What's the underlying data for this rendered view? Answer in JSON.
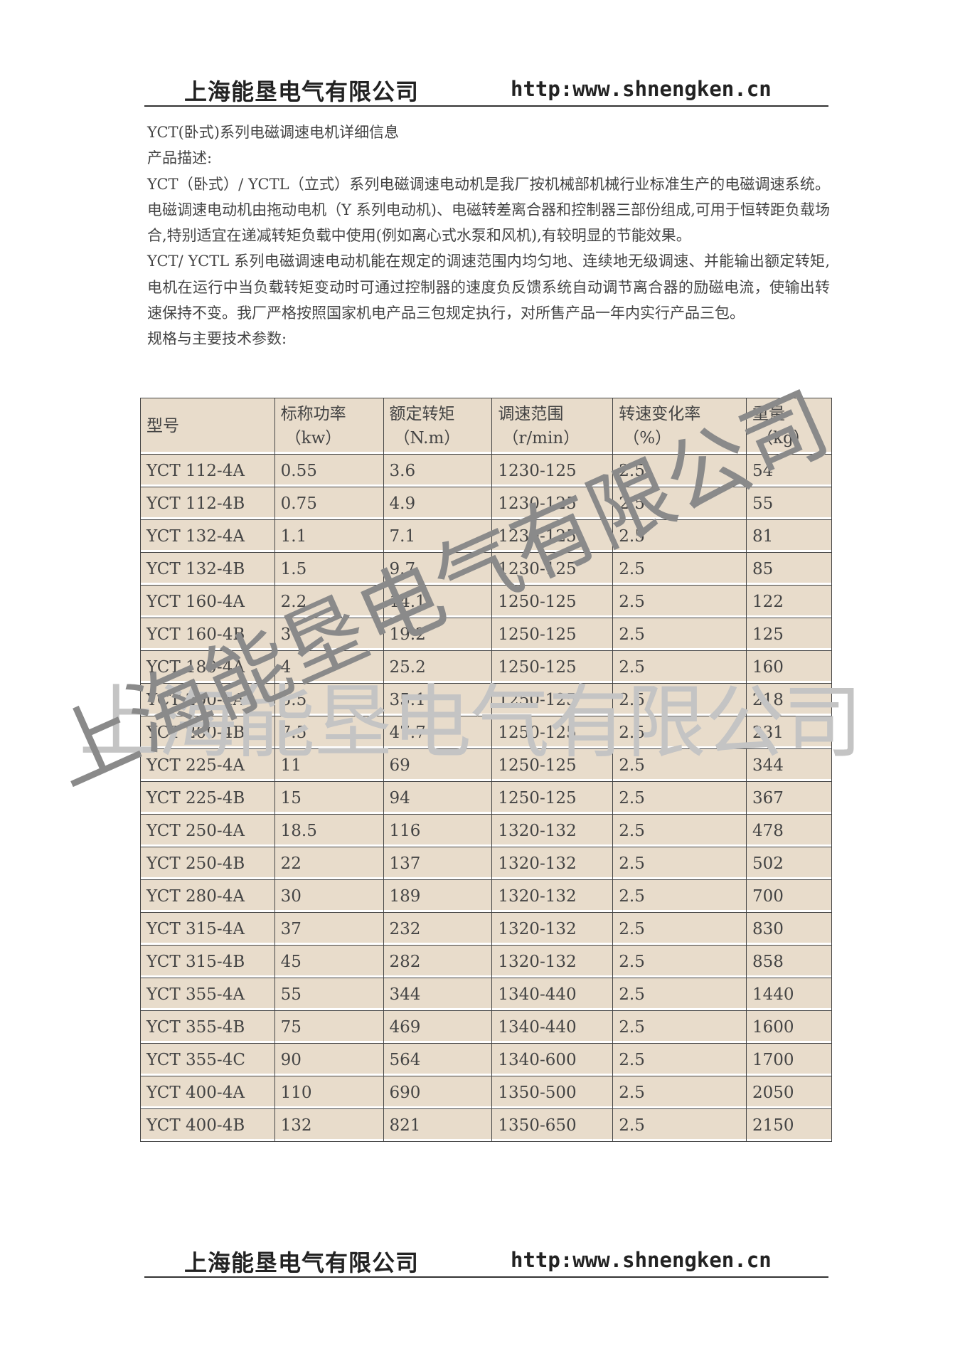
{
  "header": {
    "company": "上海能垦电气有限公司",
    "url": "http:www.shnengken.cn"
  },
  "footer": {
    "company": "上海能垦电气有限公司",
    "url": "http:www.shnengken.cn"
  },
  "content": {
    "title": "YCT(卧式)系列电磁调速电机详细信息",
    "desc_label": "产品描述:",
    "para1": "YCT（卧式）/ YCTL（立式）系列电磁调速电动机是我厂按机械部机械行业标准生产的电磁调速系统。电磁调速电动机由拖动电机（Y 系列电动机)、电磁转差离合器和控制器三部份组成,可用于恒转距负载场合,特别适宜在递减转矩负载中使用(例如离心式水泵和风机),有较明显的节能效果。",
    "para2": "YCT/ YCTL 系列电磁调速电动机能在规定的调速范围内均匀地、连续地无级调速、并能输出额定转矩,电机在运行中当负载转矩变动时可通过控制器的速度负反馈系统自动调节离合器的励磁电流，使输出转速保持不变。我厂严格按照国家机电产品三包规定执行，对所售产品一年内实行产品三包。",
    "spec_label": "规格与主要技术参数:"
  },
  "table": {
    "headers": [
      {
        "name": "型号",
        "unit": ""
      },
      {
        "name": "标称功率",
        "unit": "（kw）"
      },
      {
        "name": "额定转矩",
        "unit": "（N.m）"
      },
      {
        "name": "调速范围",
        "unit": "（r/min）"
      },
      {
        "name": "转速变化率",
        "unit": "（%）"
      },
      {
        "name": "重量",
        "unit": "（kg）"
      }
    ],
    "rows": [
      [
        "YCT 112-4A",
        "0.55",
        "3.6",
        "1230-125",
        "2.5",
        "54"
      ],
      [
        "YCT 112-4B",
        "0.75",
        "4.9",
        "1230-125",
        "2.5",
        "55"
      ],
      [
        "YCT 132-4A",
        "1.1",
        "7.1",
        "1230-125",
        "2.5",
        "81"
      ],
      [
        "YCT 132-4B",
        "1.5",
        "9.7",
        "1230-125",
        "2.5",
        "85"
      ],
      [
        "YCT 160-4A",
        "2.2",
        "14.1",
        "1250-125",
        "2.5",
        "122"
      ],
      [
        "YCT 160-4B",
        "3",
        "19.2",
        "1250-125",
        "2.5",
        "125"
      ],
      [
        "YCT 180-4A",
        "4",
        "25.2",
        "1250-125",
        "2.5",
        "160"
      ],
      [
        "YCT 200-4A",
        "5.5",
        "35.1",
        "1250-125",
        "2.5",
        "218"
      ],
      [
        "YCT 200-4B",
        "7.5",
        "47.7",
        "1250-125",
        "2.5",
        "231"
      ],
      [
        "YCT 225-4A",
        "11",
        "69",
        "1250-125",
        "2.5",
        "344"
      ],
      [
        "YCT 225-4B",
        "15",
        "94",
        "1250-125",
        "2.5",
        "367"
      ],
      [
        "YCT 250-4A",
        "18.5",
        "116",
        "1320-132",
        "2.5",
        "478"
      ],
      [
        "YCT 250-4B",
        "22",
        "137",
        "1320-132",
        "2.5",
        "502"
      ],
      [
        "YCT 280-4A",
        "30",
        "189",
        "1320-132",
        "2.5",
        "700"
      ],
      [
        "YCT 315-4A",
        "37",
        "232",
        "1320-132",
        "2.5",
        "830"
      ],
      [
        "YCT 315-4B",
        "45",
        "282",
        "1320-132",
        "2.5",
        "858"
      ],
      [
        "YCT 355-4A",
        "55",
        "344",
        "1340-440",
        "2.5",
        "1440"
      ],
      [
        "YCT 355-4B",
        "75",
        "469",
        "1340-440",
        "2.5",
        "1600"
      ],
      [
        "YCT 355-4C",
        "90",
        "564",
        "1340-600",
        "2.5",
        "1700"
      ],
      [
        "YCT 400-4A",
        "110",
        "690",
        "1350-500",
        "2.5",
        "2050"
      ],
      [
        "YCT 400-4B",
        "132",
        "821",
        "1350-650",
        "2.5",
        "2150"
      ]
    ]
  },
  "watermark": {
    "text": "上海能垦电气有限公司"
  }
}
